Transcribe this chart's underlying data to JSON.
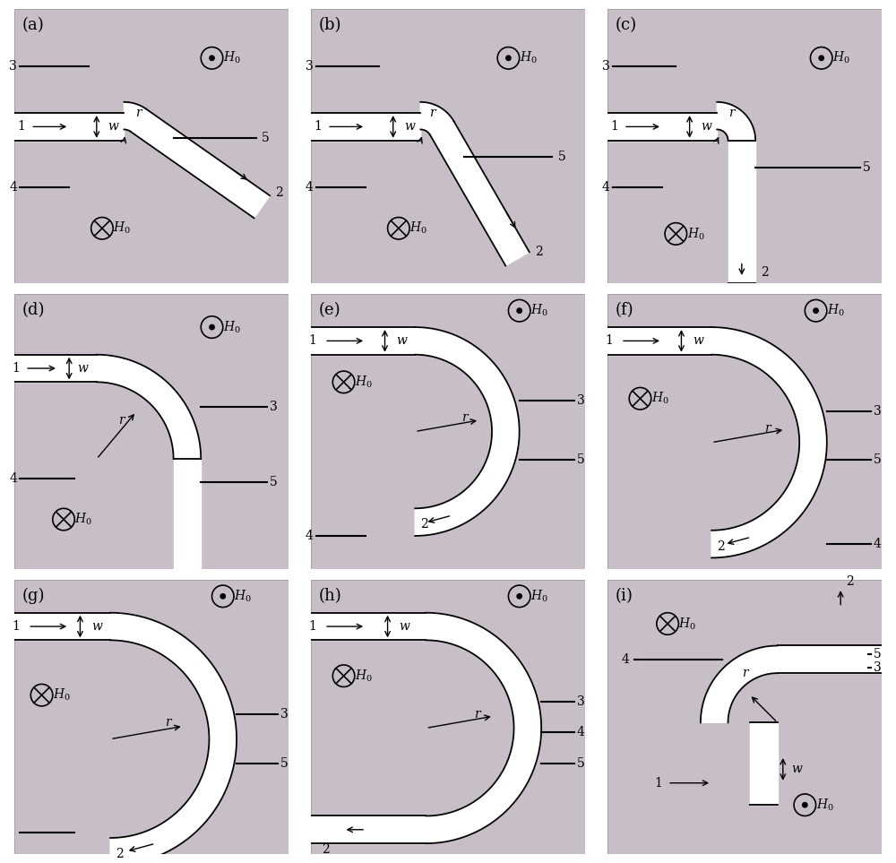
{
  "bg_color": "#c8bec8",
  "waveguide_color": "white",
  "line_color": "black",
  "fig_width": 10.0,
  "fig_height": 9.63,
  "panels": [
    "a",
    "b",
    "c",
    "d",
    "e",
    "f",
    "g",
    "h",
    "i"
  ],
  "label_fontsize": 13,
  "text_fontsize": 10,
  "lw_wg": 1.3,
  "lw_stub": 1.5
}
